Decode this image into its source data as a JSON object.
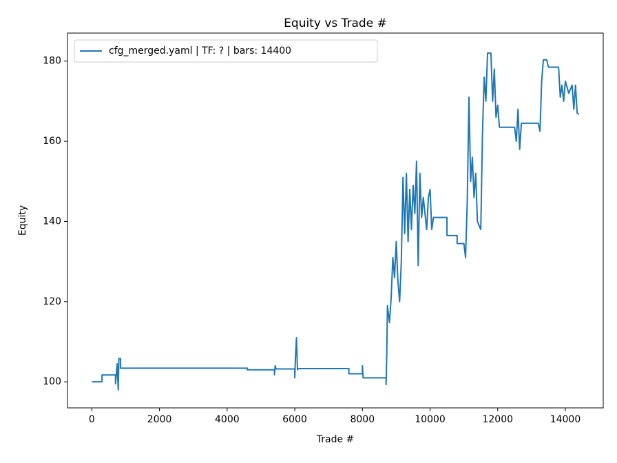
{
  "chart_data": {
    "type": "line",
    "title": "Equity vs Trade #",
    "xlabel": "Trade #",
    "ylabel": "Equity",
    "x": [
      0,
      300,
      300,
      700,
      700,
      750,
      780,
      800,
      800,
      850,
      850,
      4600,
      4600,
      5400,
      5400,
      5420,
      5450,
      6000,
      6000,
      6020,
      6050,
      6080,
      6100,
      7600,
      7600,
      8000,
      8000,
      8020,
      8050,
      8700,
      8700,
      8720,
      8740,
      8800,
      8850,
      8900,
      8950,
      9000,
      9050,
      9100,
      9150,
      9200,
      9250,
      9300,
      9350,
      9400,
      9450,
      9500,
      9550,
      9600,
      9650,
      9700,
      9750,
      9800,
      9900,
      9950,
      10000,
      10050,
      10100,
      10500,
      10500,
      10800,
      10800,
      11000,
      11050,
      11100,
      11150,
      11200,
      11250,
      11300,
      11350,
      11400,
      11500,
      11550,
      11600,
      11650,
      11700,
      11800,
      11850,
      11900,
      11950,
      12000,
      12050,
      12500,
      12550,
      12600,
      12650,
      12700,
      13200,
      13250,
      13300,
      13350,
      13450,
      13500,
      13800,
      13850,
      13900,
      13950,
      14000,
      14100,
      14200,
      14250,
      14300,
      14350,
      14400
    ],
    "series": [
      {
        "name": "cfg_merged.yaml | TF: ? | bars: 14400",
        "color": "#1f77b4",
        "values": [
          100,
          100,
          101.7,
          101.7,
          99.5,
          104.5,
          98,
          105.8,
          105.8,
          105.8,
          103.4,
          103.4,
          103,
          103,
          101.8,
          104,
          103.2,
          103.2,
          101,
          106,
          111,
          103,
          103.3,
          103.3,
          102,
          102,
          104,
          101,
          101,
          101,
          99.3,
          107,
          119,
          114.8,
          121,
          131,
          126,
          135,
          125,
          120,
          130,
          151,
          137,
          152,
          135,
          148,
          138,
          149,
          142,
          155,
          129,
          152,
          141,
          146,
          138,
          146,
          148,
          138,
          141,
          141,
          136.5,
          136.5,
          134.5,
          134.5,
          131,
          145,
          171,
          150,
          156,
          146,
          152,
          140,
          138,
          162,
          176,
          170,
          182,
          182,
          170,
          178,
          166,
          169,
          163.5,
          163.5,
          160,
          168,
          158,
          164.5,
          164.5,
          162.5,
          175,
          180.3,
          180.3,
          178.5,
          178.5,
          171,
          174,
          170,
          175,
          172,
          174,
          168,
          174,
          167,
          166.8
        ]
      }
    ],
    "xlim": [
      -720,
      15120
    ],
    "ylim": [
      93.5,
      187
    ],
    "xticks": [
      0,
      2000,
      4000,
      6000,
      8000,
      10000,
      12000,
      14000
    ],
    "yticks": [
      100,
      120,
      140,
      160,
      180
    ],
    "legend": "upper left"
  }
}
